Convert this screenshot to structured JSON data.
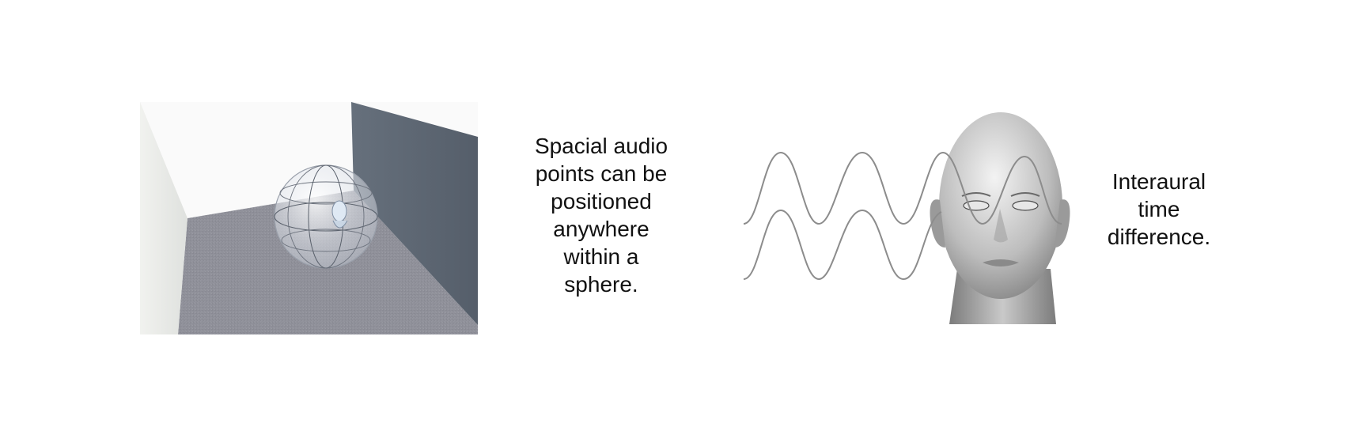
{
  "left_caption": {
    "lines": [
      "Spacial audio",
      "points can be",
      "positioned",
      "anywhere",
      "within a",
      "sphere."
    ]
  },
  "right_caption": {
    "lines": [
      "Interaural",
      "time",
      "difference."
    ]
  },
  "colors": {
    "wall_left": "#e9ebe8",
    "wall_back": "#fafafa",
    "wall_right": "#5d6672",
    "floor": "#8d8e99",
    "wave": "#8c8c8c",
    "text": "#111111"
  }
}
